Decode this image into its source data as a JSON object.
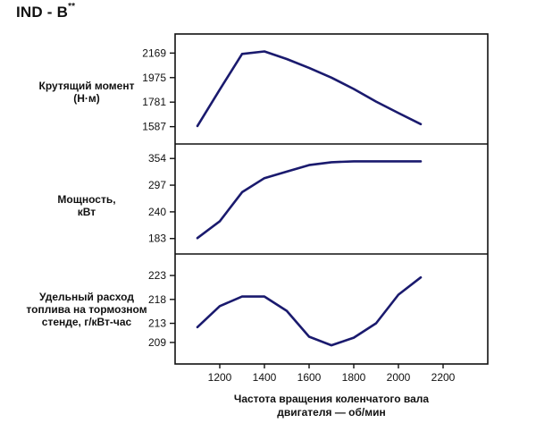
{
  "header": {
    "model": "IND - B",
    "model_suffix": "**"
  },
  "axis": {
    "xlabel": "Частота вращения коленчатого вала\nдвигателя — об/мин"
  },
  "chart_data": [
    {
      "type": "line",
      "ylabel": "Крутящий момент\n(Н·м)",
      "x": [
        1100,
        1200,
        1300,
        1400,
        1500,
        1600,
        1700,
        1800,
        1900,
        2000,
        2100
      ],
      "values": [
        1592,
        1880,
        2162,
        2182,
        2122,
        2052,
        1975,
        1885,
        1785,
        1695,
        1607
      ],
      "yticks": [
        1587,
        1781,
        1975,
        2169
      ],
      "ylim": [
        1450,
        2320
      ],
      "xlim": [
        1000,
        2400
      ],
      "color": "#1a1a6e"
    },
    {
      "type": "line",
      "ylabel": "Мощность,\nкВт",
      "x": [
        1100,
        1200,
        1300,
        1400,
        1500,
        1600,
        1700,
        1800,
        1900,
        2000,
        2100
      ],
      "values": [
        184,
        220,
        282,
        312,
        326,
        340,
        346,
        348,
        348,
        348,
        348
      ],
      "yticks": [
        183,
        240,
        297,
        354
      ],
      "ylim": [
        150,
        385
      ],
      "xlim": [
        1000,
        2400
      ],
      "color": "#1a1a6e"
    },
    {
      "type": "line",
      "ylabel": "Удельный расход\nтоплива на тормозном\nстенде, г/кВт-час",
      "x": [
        1100,
        1200,
        1300,
        1400,
        1500,
        1600,
        1700,
        1800,
        1900,
        2000,
        2100
      ],
      "values": [
        212.2,
        216.6,
        218.6,
        218.6,
        215.6,
        210.2,
        208.4,
        210.0,
        213.0,
        219.0,
        222.6
      ],
      "yticks": [
        209,
        213,
        218,
        223
      ],
      "ylim": [
        204.5,
        227.5
      ],
      "xlim": [
        1000,
        2400
      ],
      "xticks": [
        1200,
        1400,
        1600,
        1800,
        2000,
        2200
      ],
      "color": "#1a1a6e"
    }
  ]
}
